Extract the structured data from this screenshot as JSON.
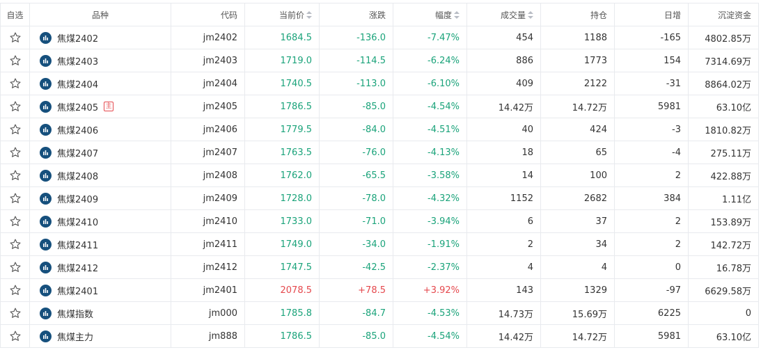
{
  "colors": {
    "down": "#1aa37a",
    "up": "#e5484d",
    "icon": "#16507d"
  },
  "headers": {
    "fav": "自选",
    "name": "品种",
    "code": "代码",
    "price": "当前价",
    "change": "涨跌",
    "pct": "幅度",
    "volume": "成交量",
    "oi": "持仓",
    "daily": "日增",
    "capital": "沉淀资金"
  },
  "rows": [
    {
      "name": "焦煤2402",
      "badge": "",
      "code": "jm2402",
      "price": "1684.5",
      "change": "-136.0",
      "pct": "-7.47%",
      "volume": "454",
      "oi": "1188",
      "daily": "-165",
      "capital": "4802.85万",
      "trend": "down"
    },
    {
      "name": "焦煤2403",
      "badge": "",
      "code": "jm2403",
      "price": "1719.0",
      "change": "-114.5",
      "pct": "-6.24%",
      "volume": "886",
      "oi": "1773",
      "daily": "154",
      "capital": "7314.69万",
      "trend": "down"
    },
    {
      "name": "焦煤2404",
      "badge": "",
      "code": "jm2404",
      "price": "1740.5",
      "change": "-113.0",
      "pct": "-6.10%",
      "volume": "409",
      "oi": "2122",
      "daily": "-31",
      "capital": "8864.02万",
      "trend": "down"
    },
    {
      "name": "焦煤2405",
      "badge": "主",
      "code": "jm2405",
      "price": "1786.5",
      "change": "-85.0",
      "pct": "-4.54%",
      "volume": "14.42万",
      "oi": "14.72万",
      "daily": "5981",
      "capital": "63.10亿",
      "trend": "down"
    },
    {
      "name": "焦煤2406",
      "badge": "",
      "code": "jm2406",
      "price": "1779.5",
      "change": "-84.0",
      "pct": "-4.51%",
      "volume": "40",
      "oi": "424",
      "daily": "-3",
      "capital": "1810.82万",
      "trend": "down"
    },
    {
      "name": "焦煤2407",
      "badge": "",
      "code": "jm2407",
      "price": "1763.5",
      "change": "-76.0",
      "pct": "-4.13%",
      "volume": "18",
      "oi": "65",
      "daily": "-4",
      "capital": "275.11万",
      "trend": "down"
    },
    {
      "name": "焦煤2408",
      "badge": "",
      "code": "jm2408",
      "price": "1762.0",
      "change": "-65.5",
      "pct": "-3.58%",
      "volume": "14",
      "oi": "100",
      "daily": "2",
      "capital": "422.88万",
      "trend": "down"
    },
    {
      "name": "焦煤2409",
      "badge": "",
      "code": "jm2409",
      "price": "1728.0",
      "change": "-78.0",
      "pct": "-4.32%",
      "volume": "1152",
      "oi": "2682",
      "daily": "384",
      "capital": "1.11亿",
      "trend": "down"
    },
    {
      "name": "焦煤2410",
      "badge": "",
      "code": "jm2410",
      "price": "1733.0",
      "change": "-71.0",
      "pct": "-3.94%",
      "volume": "6",
      "oi": "37",
      "daily": "2",
      "capital": "153.89万",
      "trend": "down"
    },
    {
      "name": "焦煤2411",
      "badge": "",
      "code": "jm2411",
      "price": "1749.0",
      "change": "-34.0",
      "pct": "-1.91%",
      "volume": "2",
      "oi": "34",
      "daily": "2",
      "capital": "142.72万",
      "trend": "down"
    },
    {
      "name": "焦煤2412",
      "badge": "",
      "code": "jm2412",
      "price": "1747.5",
      "change": "-42.5",
      "pct": "-2.37%",
      "volume": "4",
      "oi": "4",
      "daily": "0",
      "capital": "16.78万",
      "trend": "down"
    },
    {
      "name": "焦煤2401",
      "badge": "",
      "code": "jm2401",
      "price": "2078.5",
      "change": "+78.5",
      "pct": "+3.92%",
      "volume": "143",
      "oi": "1329",
      "daily": "-97",
      "capital": "6629.58万",
      "trend": "up"
    },
    {
      "name": "焦煤指数",
      "badge": "",
      "code": "jm000",
      "price": "1785.8",
      "change": "-84.7",
      "pct": "-4.53%",
      "volume": "14.73万",
      "oi": "15.69万",
      "daily": "6225",
      "capital": "0",
      "trend": "down"
    },
    {
      "name": "焦煤主力",
      "badge": "",
      "code": "jm888",
      "price": "1786.5",
      "change": "-85.0",
      "pct": "-4.54%",
      "volume": "14.42万",
      "oi": "14.72万",
      "daily": "5981",
      "capital": "63.10亿",
      "trend": "down"
    }
  ]
}
